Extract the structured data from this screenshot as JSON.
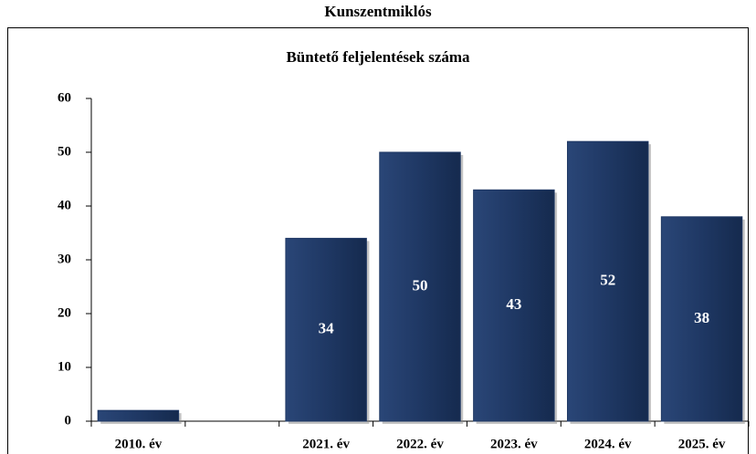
{
  "chart_data": {
    "type": "bar",
    "title": "Kunszentmiklós",
    "subtitle": "Büntető feljelentések száma",
    "categories": [
      "2010. év",
      null,
      "2021. év",
      "2022. év",
      "2023. év",
      "2024. év",
      "2025. év"
    ],
    "values": [
      2,
      null,
      34,
      50,
      43,
      52,
      38
    ],
    "value_labels": [
      null,
      null,
      "34",
      "50",
      "43",
      "52",
      "38"
    ],
    "color": "#1f3864",
    "ylim": [
      0,
      60
    ],
    "yticks": [
      0,
      10,
      20,
      30,
      40,
      50,
      60
    ],
    "grid": false
  }
}
